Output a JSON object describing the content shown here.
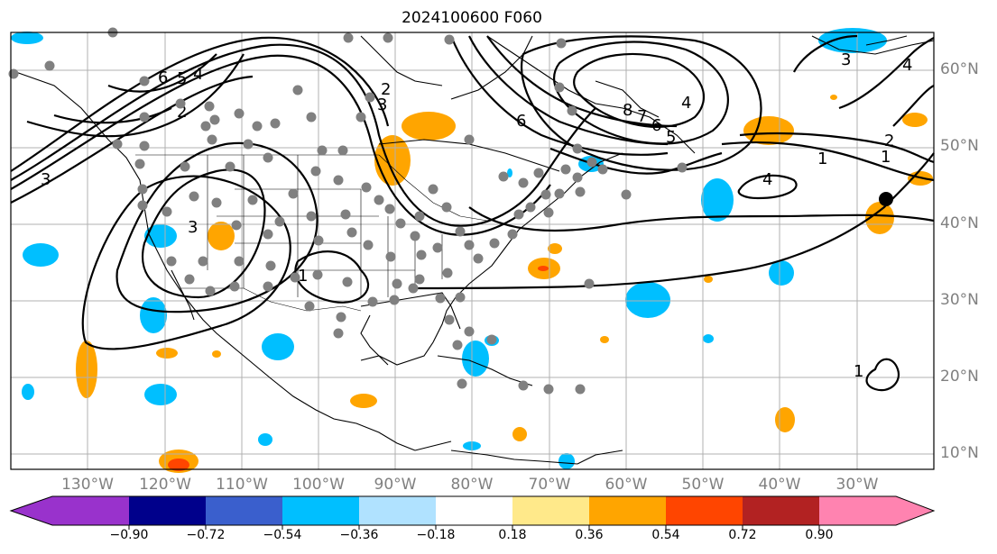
{
  "title": "2024100600 F060",
  "lat_labels": [
    "60°N",
    "50°N",
    "40°N",
    "30°N",
    "20°N",
    "10°N"
  ],
  "lon_labels": [
    "130°W",
    "120°W",
    "110°W",
    "100°W",
    "90°W",
    "80°W",
    "70°W",
    "60°W",
    "50°W",
    "40°W",
    "30°W"
  ],
  "colorbar": {
    "ticks": [
      "−0.90",
      "−0.72",
      "−0.54",
      "−0.36",
      "−0.18",
      "0.18",
      "0.36",
      "0.54",
      "0.72",
      "0.90"
    ],
    "colors": [
      "#9932cc",
      "#00008b",
      "#3a5fcd",
      "#00bfff",
      "#b0e2ff",
      "#ffffff",
      "#ffe98a",
      "#ffa500",
      "#ff4500",
      "#b22222",
      "#ff83b0"
    ]
  },
  "contour_labels": [
    "5",
    "4",
    "6",
    "2",
    "3",
    "3",
    "3",
    "2",
    "6",
    "4",
    "8",
    "7",
    "6",
    "5",
    "3",
    "4",
    "1",
    "2",
    "1",
    "4",
    "1",
    "1"
  ]
}
